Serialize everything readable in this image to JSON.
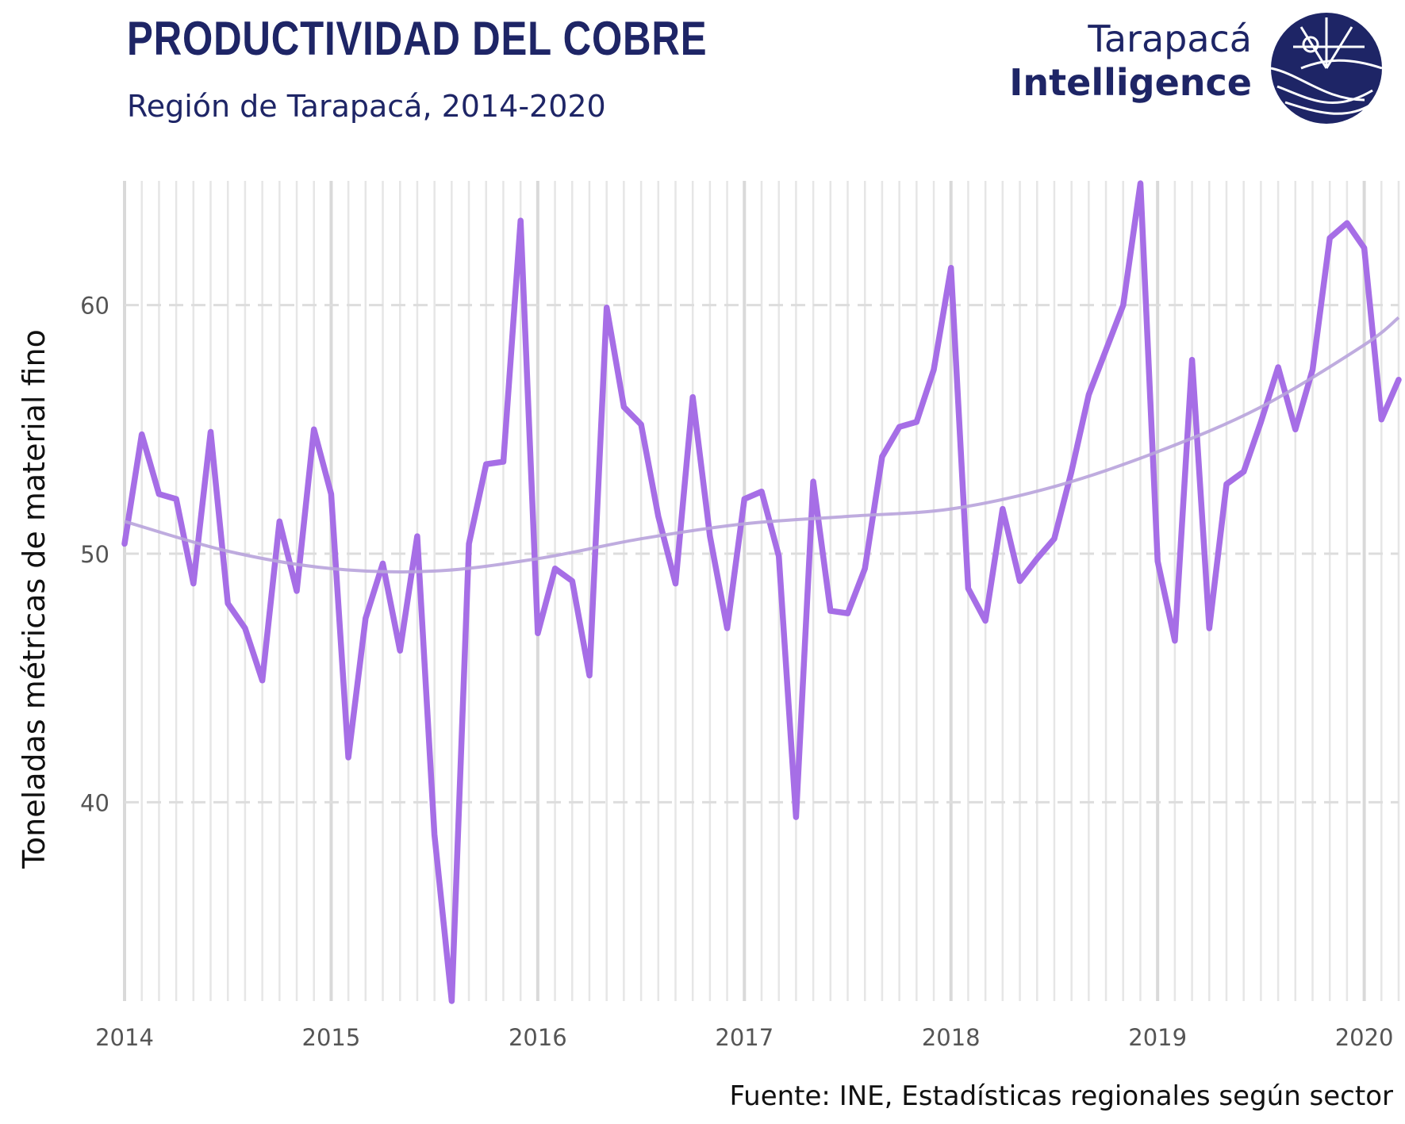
{
  "header": {
    "title": "PRODUCTIVIDAD DEL COBRE",
    "subtitle": "Región de Tarapacá, 2014-2020"
  },
  "brand": {
    "line1": "Tarapacá",
    "line2": "Intelligence",
    "logo_icon": "globe-compass-icon",
    "color": "#1e2566"
  },
  "caption": "Fuente: INE, Estadísticas regionales según sector",
  "chart_data": {
    "type": "line",
    "title": "PRODUCTIVIDAD DEL COBRE",
    "subtitle": "Región de Tarapacá, 2014-2020",
    "xlabel": "",
    "ylabel": "Toneladas métricas de material fino",
    "x_ticks": [
      "2014",
      "2015",
      "2016",
      "2017",
      "2018",
      "2019",
      "2020"
    ],
    "y_ticks": [
      40,
      50,
      60
    ],
    "xlim": [
      "2014-01",
      "2020-03"
    ],
    "ylim": [
      32,
      65
    ],
    "grid": {
      "vertical_monthly": true,
      "horizontal_dashed": true
    },
    "series": [
      {
        "role": "monthly",
        "color": "#a66ee6",
        "x": [
          "2014-01",
          "2014-02",
          "2014-03",
          "2014-04",
          "2014-05",
          "2014-06",
          "2014-07",
          "2014-08",
          "2014-09",
          "2014-10",
          "2014-11",
          "2014-12",
          "2015-01",
          "2015-02",
          "2015-03",
          "2015-04",
          "2015-05",
          "2015-06",
          "2015-07",
          "2015-08",
          "2015-09",
          "2015-10",
          "2015-11",
          "2015-12",
          "2016-01",
          "2016-02",
          "2016-03",
          "2016-04",
          "2016-05",
          "2016-06",
          "2016-07",
          "2016-08",
          "2016-09",
          "2016-10",
          "2016-11",
          "2016-12",
          "2017-01",
          "2017-02",
          "2017-03",
          "2017-04",
          "2017-05",
          "2017-06",
          "2017-07",
          "2017-08",
          "2017-09",
          "2017-10",
          "2017-11",
          "2017-12",
          "2018-01",
          "2018-02",
          "2018-03",
          "2018-04",
          "2018-05",
          "2018-06",
          "2018-07",
          "2018-08",
          "2018-09",
          "2018-10",
          "2018-11",
          "2018-12",
          "2019-01",
          "2019-02",
          "2019-03",
          "2019-04",
          "2019-05",
          "2019-06",
          "2019-07",
          "2019-08",
          "2019-09",
          "2019-10",
          "2019-11",
          "2019-12",
          "2020-01",
          "2020-02",
          "2020-03"
        ],
        "values": [
          50.4,
          54.8,
          52.4,
          52.2,
          48.8,
          54.9,
          48.0,
          47.0,
          44.9,
          51.3,
          48.5,
          55.0,
          52.4,
          41.8,
          47.4,
          49.6,
          46.1,
          50.7,
          38.7,
          32.0,
          50.4,
          53.6,
          53.7,
          63.4,
          46.8,
          49.4,
          48.9,
          45.1,
          59.9,
          55.9,
          55.2,
          51.5,
          48.8,
          56.3,
          50.7,
          47.0,
          52.2,
          52.5,
          49.9,
          39.4,
          52.9,
          47.7,
          47.6,
          49.4,
          53.9,
          55.1,
          55.3,
          57.4,
          61.5,
          48.6,
          47.3,
          51.8,
          48.9,
          49.8,
          50.6,
          53.3,
          56.4,
          58.2,
          60.0,
          64.9,
          49.7,
          46.5,
          57.8,
          47.0,
          52.8,
          53.3,
          55.3,
          57.5,
          55.0,
          57.4,
          62.7,
          63.3,
          62.3,
          55.4,
          57.0
        ]
      },
      {
        "role": "trend",
        "color": "#b8a3dc",
        "x": [
          "2014-01",
          "2014-07",
          "2015-01",
          "2015-07",
          "2016-01",
          "2016-07",
          "2017-01",
          "2017-07",
          "2018-01",
          "2018-07",
          "2019-01",
          "2019-07",
          "2020-01",
          "2020-03"
        ],
        "values": [
          51.3,
          50.1,
          49.4,
          49.3,
          49.8,
          50.6,
          51.2,
          51.5,
          51.8,
          52.7,
          54.1,
          55.9,
          58.4,
          59.5
        ]
      }
    ]
  }
}
